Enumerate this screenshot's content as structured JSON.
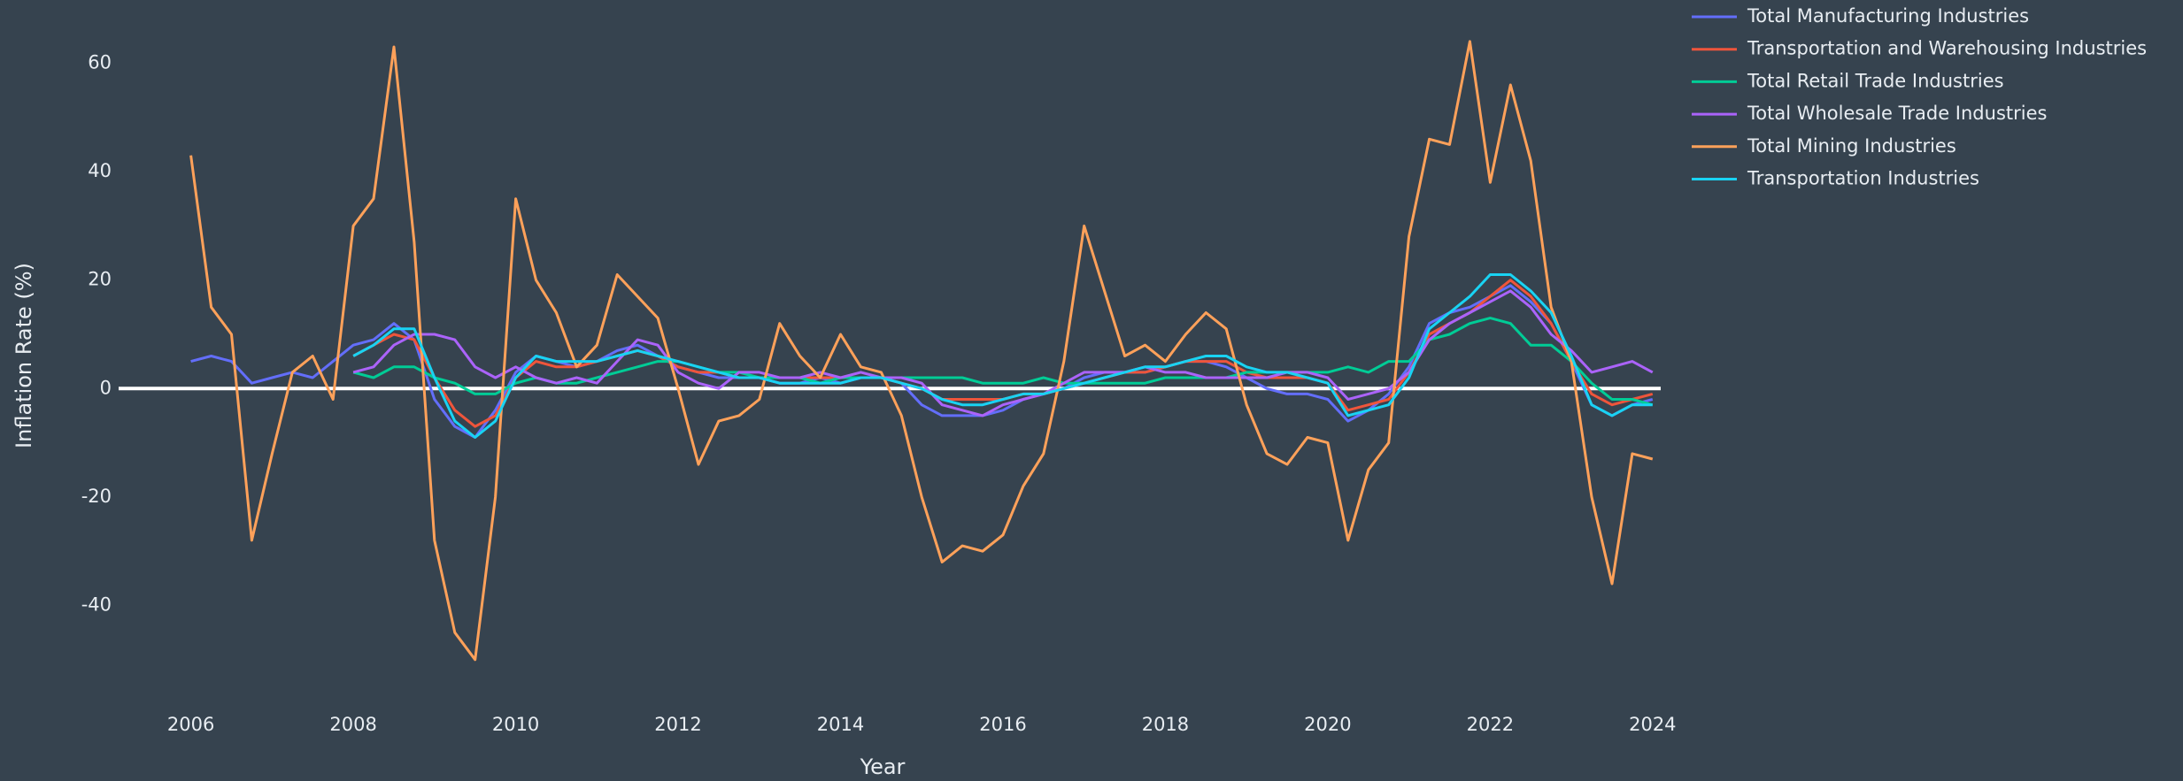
{
  "chart_data": {
    "type": "line",
    "x_label": "Year",
    "y_label": "Inflation Rate (%)",
    "xlim": [
      2005.11,
      2024.1
    ],
    "ylim": [
      -59,
      71
    ],
    "xticks": [
      2006,
      2008,
      2010,
      2012,
      2014,
      2016,
      2018,
      2020,
      2022,
      2024
    ],
    "yticks": [
      -40,
      -20,
      0,
      20,
      40,
      60
    ],
    "zeroline": true,
    "grid": false,
    "legend": "top-right",
    "x": [
      2006,
      2006.25,
      2006.5,
      2006.75,
      2007,
      2007.25,
      2007.5,
      2007.75,
      2008,
      2008.25,
      2008.5,
      2008.75,
      2009,
      2009.25,
      2009.5,
      2009.75,
      2010,
      2010.25,
      2010.5,
      2010.75,
      2011,
      2011.25,
      2011.5,
      2011.75,
      2012,
      2012.25,
      2012.5,
      2012.75,
      2013,
      2013.25,
      2013.5,
      2013.75,
      2014,
      2014.25,
      2014.5,
      2014.75,
      2015,
      2015.25,
      2015.5,
      2015.75,
      2016,
      2016.25,
      2016.5,
      2016.75,
      2017,
      2017.25,
      2017.5,
      2017.75,
      2018,
      2018.25,
      2018.5,
      2018.75,
      2019,
      2019.25,
      2019.5,
      2019.75,
      2020,
      2020.25,
      2020.5,
      2020.75,
      2021,
      2021.25,
      2021.5,
      2021.75,
      2022,
      2022.25,
      2022.5,
      2022.75,
      2023,
      2023.25,
      2023.5,
      2023.75,
      2024
    ],
    "series": [
      {
        "name": "Total Manufacturing Industries",
        "color": "#636efa",
        "values": [
          5,
          6,
          5,
          1,
          2,
          3,
          2,
          5,
          8,
          9,
          12,
          9,
          -2,
          -7,
          -9,
          -4,
          3,
          6,
          5,
          4,
          5,
          7,
          8,
          6,
          4,
          3,
          2,
          2,
          2,
          1,
          1,
          2,
          1,
          2,
          2,
          1,
          -3,
          -5,
          -5,
          -5,
          -4,
          -2,
          -1,
          0,
          2,
          3,
          3,
          3,
          4,
          5,
          5,
          4,
          2,
          0,
          -1,
          -1,
          -2,
          -6,
          -4,
          -1,
          4,
          12,
          14,
          15,
          17,
          19,
          16,
          12,
          5,
          -3,
          -5,
          -3,
          -2
        ]
      },
      {
        "name": "Transportation and Warehousing Industries",
        "color": "#ef553b",
        "values": [
          null,
          null,
          null,
          null,
          null,
          null,
          null,
          null,
          6,
          8,
          10,
          9,
          2,
          -4,
          -7,
          -5,
          2,
          5,
          4,
          4,
          5,
          6,
          7,
          6,
          4,
          3,
          3,
          2,
          2,
          2,
          2,
          2,
          2,
          2,
          2,
          1,
          0,
          -2,
          -2,
          -2,
          -2,
          -1,
          -1,
          0,
          1,
          2,
          3,
          3,
          4,
          5,
          5,
          5,
          3,
          2,
          2,
          2,
          1,
          -4,
          -3,
          -2,
          3,
          10,
          12,
          14,
          17,
          20,
          17,
          12,
          5,
          -1,
          -3,
          -2,
          -1
        ]
      },
      {
        "name": "Total Retail Trade Industries",
        "color": "#00cc96",
        "values": [
          null,
          null,
          null,
          null,
          null,
          null,
          null,
          null,
          3,
          2,
          4,
          4,
          2,
          1,
          -1,
          -1,
          1,
          2,
          1,
          1,
          2,
          3,
          4,
          5,
          5,
          4,
          3,
          3,
          2,
          2,
          2,
          1,
          2,
          2,
          2,
          2,
          2,
          2,
          2,
          1,
          1,
          1,
          2,
          1,
          1,
          1,
          1,
          1,
          2,
          2,
          2,
          2,
          3,
          3,
          3,
          3,
          3,
          4,
          3,
          5,
          5,
          9,
          10,
          12,
          13,
          12,
          8,
          8,
          5,
          1,
          -2,
          -2,
          -3
        ]
      },
      {
        "name": "Total Wholesale Trade Industries",
        "color": "#ab63fa",
        "values": [
          null,
          null,
          null,
          null,
          null,
          null,
          null,
          null,
          3,
          4,
          8,
          10,
          10,
          9,
          4,
          2,
          4,
          2,
          1,
          2,
          1,
          5,
          9,
          8,
          3,
          1,
          0,
          3,
          3,
          2,
          2,
          3,
          2,
          3,
          2,
          2,
          1,
          -3,
          -4,
          -5,
          -3,
          -2,
          -1,
          1,
          3,
          3,
          3,
          4,
          3,
          3,
          2,
          2,
          2,
          2,
          3,
          3,
          2,
          -2,
          -1,
          0,
          3,
          9,
          12,
          14,
          16,
          18,
          15,
          10,
          7,
          3,
          4,
          5,
          3
        ]
      },
      {
        "name": "Total Mining Industries",
        "color": "#ffa15a",
        "values": [
          43,
          15,
          10,
          -28,
          -12,
          3,
          6,
          -2,
          30,
          35,
          63,
          27,
          -28,
          -45,
          -50,
          -20,
          35,
          20,
          14,
          4,
          8,
          21,
          17,
          13,
          0,
          -14,
          -6,
          -5,
          -2,
          12,
          6,
          2,
          10,
          4,
          3,
          -5,
          -20,
          -32,
          -29,
          -30,
          -27,
          -18,
          -12,
          5,
          30,
          18,
          6,
          8,
          5,
          10,
          14,
          11,
          -3,
          -12,
          -14,
          -9,
          -10,
          -28,
          -15,
          -10,
          28,
          46,
          45,
          64,
          38,
          56,
          42,
          15,
          5,
          -20,
          -36,
          -12,
          -13
        ]
      },
      {
        "name": "Transportation Industries",
        "color": "#19d3f3",
        "values": [
          null,
          null,
          null,
          null,
          null,
          null,
          null,
          null,
          6,
          8,
          11,
          11,
          2,
          -6,
          -9,
          -6,
          2,
          6,
          5,
          5,
          5,
          6,
          7,
          6,
          5,
          4,
          3,
          2,
          2,
          1,
          1,
          1,
          1,
          2,
          2,
          1,
          0,
          -2,
          -3,
          -3,
          -2,
          -1,
          -1,
          0,
          1,
          2,
          3,
          4,
          4,
          5,
          6,
          6,
          4,
          3,
          3,
          2,
          1,
          -5,
          -4,
          -3,
          2,
          11,
          14,
          17,
          21,
          21,
          18,
          14,
          6,
          -3,
          -5,
          -3,
          -3
        ]
      }
    ]
  }
}
